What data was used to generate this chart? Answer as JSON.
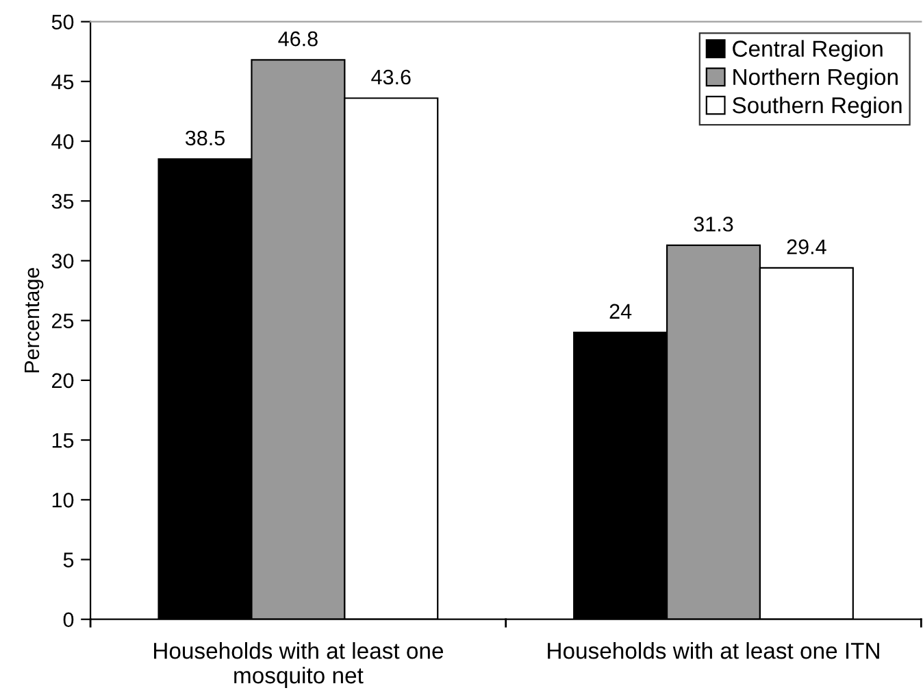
{
  "chart_data": {
    "type": "bar",
    "ylabel": "Percentage",
    "categories": [
      "Households with at least one\nmosquito net",
      "Households with at least one ITN"
    ],
    "series": [
      {
        "name": "Central Region",
        "color": "#000000",
        "values": [
          38.5,
          24
        ]
      },
      {
        "name": "Northern Region",
        "color": "#999999",
        "values": [
          46.8,
          31.3
        ]
      },
      {
        "name": "Southern Region",
        "color": "#ffffff",
        "values": [
          43.6,
          29.4
        ]
      }
    ],
    "ylim": [
      0,
      50
    ],
    "yticks": [
      0,
      5,
      10,
      15,
      20,
      25,
      30,
      35,
      40,
      45,
      50
    ],
    "data_labels": true,
    "legend": "top right",
    "grid": false
  }
}
